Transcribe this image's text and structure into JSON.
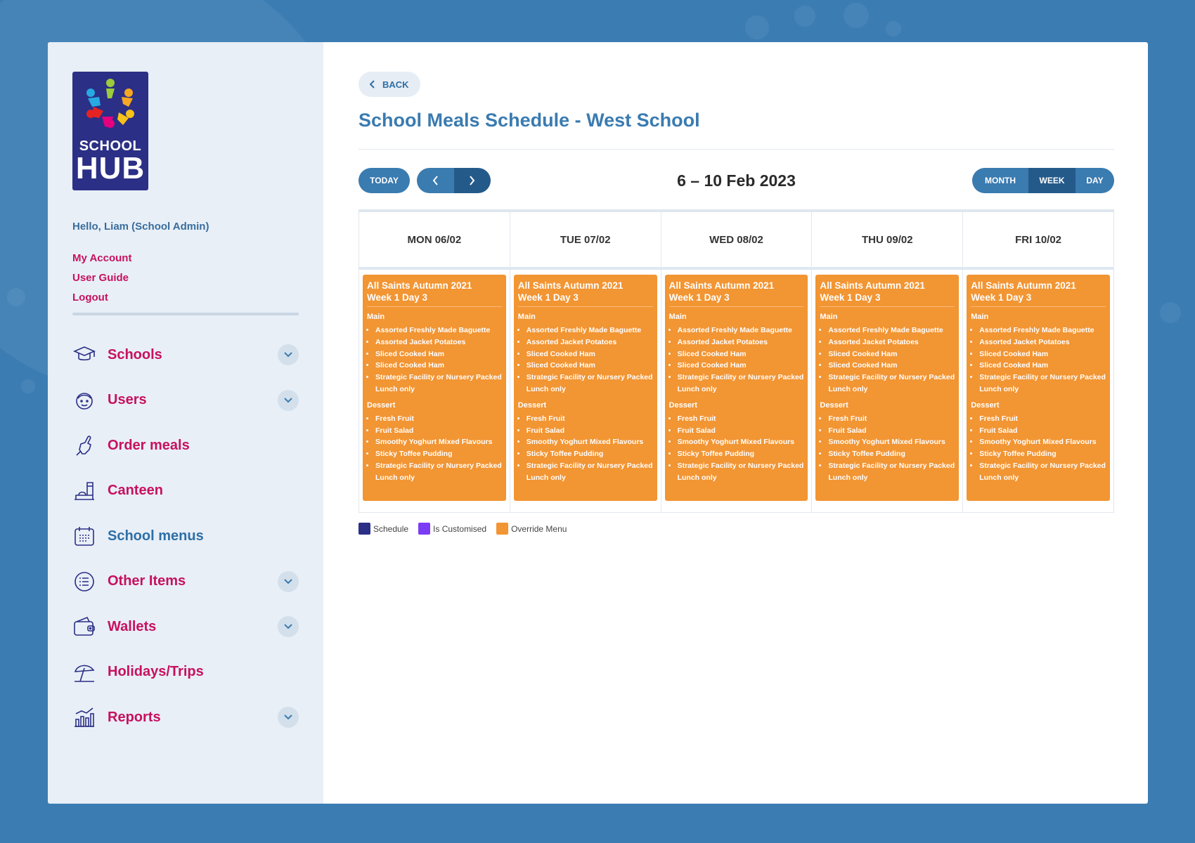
{
  "colors": {
    "page_bg": "#3b7db3",
    "accent_blue": "#3a7bb0",
    "dark_blue": "#245a8a",
    "nav_pink": "#c7115f",
    "event_orange": "#f29533"
  },
  "logo": {
    "line1": "SCHOOL",
    "line2": "HUB"
  },
  "user": {
    "greeting": "Hello, Liam (School Admin)",
    "links": [
      "My Account",
      "User Guide",
      "Logout"
    ]
  },
  "nav": [
    {
      "label": "Schools",
      "icon": "graduation-cap-icon",
      "expandable": true
    },
    {
      "label": "Users",
      "icon": "user-face-icon",
      "expandable": true
    },
    {
      "label": "Order meals",
      "icon": "hand-pointer-icon",
      "expandable": false
    },
    {
      "label": "Canteen",
      "icon": "food-tray-icon",
      "expandable": false
    },
    {
      "label": "School menus",
      "icon": "calendar-icon",
      "expandable": false,
      "active": true
    },
    {
      "label": "Other Items",
      "icon": "list-icon",
      "expandable": true
    },
    {
      "label": "Wallets",
      "icon": "wallet-icon",
      "expandable": true
    },
    {
      "label": "Holidays/Trips",
      "icon": "beach-umbrella-icon",
      "expandable": false
    },
    {
      "label": "Reports",
      "icon": "bar-chart-icon",
      "expandable": true
    }
  ],
  "main": {
    "back_label": "BACK",
    "title": "School Meals Schedule - West School"
  },
  "toolbar": {
    "today_label": "TODAY",
    "range": "6 – 10 Feb 2023",
    "views": [
      "MONTH",
      "WEEK",
      "DAY"
    ],
    "active_view": "WEEK"
  },
  "calendar": {
    "days": [
      {
        "header": "MON 06/02",
        "event": {
          "title_line1": "All Saints Autumn 2021",
          "title_line2": "Week 1 Day 3",
          "main_heading": "Main",
          "main_items": [
            "Assorted Freshly Made Baguette",
            "Assorted Jacket Potatoes",
            "Sliced Cooked Ham",
            "Sliced Cooked Ham",
            "Strategic Facility or Nursery Packed Lunch only"
          ],
          "dessert_heading": "Dessert",
          "dessert_items": [
            "Fresh Fruit",
            "Fruit Salad",
            "Smoothy Yoghurt Mixed Flavours",
            "Sticky Toffee Pudding",
            "Strategic Facility or Nursery Packed Lunch only"
          ]
        }
      },
      {
        "header": "TUE 07/02",
        "event": {
          "title_line1": "All Saints Autumn 2021",
          "title_line2": "Week 1 Day 3",
          "main_heading": "Main",
          "main_items": [
            "Assorted Freshly Made Baguette",
            "Assorted Jacket Potatoes",
            "Sliced Cooked Ham",
            "Sliced Cooked Ham",
            "Strategic Facility or Nursery Packed Lunch only"
          ],
          "dessert_heading": "Dessert",
          "dessert_items": [
            "Fresh Fruit",
            "Fruit Salad",
            "Smoothy Yoghurt Mixed Flavours",
            "Sticky Toffee Pudding",
            "Strategic Facility or Nursery Packed Lunch only"
          ]
        }
      },
      {
        "header": "WED 08/02",
        "event": {
          "title_line1": "All Saints Autumn 2021",
          "title_line2": "Week 1 Day 3",
          "main_heading": "Main",
          "main_items": [
            "Assorted Freshly Made Baguette",
            "Assorted Jacket Potatoes",
            "Sliced Cooked Ham",
            "Sliced Cooked Ham",
            "Strategic Facility or Nursery Packed Lunch only"
          ],
          "dessert_heading": "Dessert",
          "dessert_items": [
            "Fresh Fruit",
            "Fruit Salad",
            "Smoothy Yoghurt Mixed Flavours",
            "Sticky Toffee Pudding",
            "Strategic Facility or Nursery Packed Lunch only"
          ]
        }
      },
      {
        "header": "THU 09/02",
        "event": {
          "title_line1": "All Saints Autumn 2021",
          "title_line2": "Week 1 Day 3",
          "main_heading": "Main",
          "main_items": [
            "Assorted Freshly Made Baguette",
            "Assorted Jacket Potatoes",
            "Sliced Cooked Ham",
            "Sliced Cooked Ham",
            "Strategic Facility or Nursery Packed Lunch only"
          ],
          "dessert_heading": "Dessert",
          "dessert_items": [
            "Fresh Fruit",
            "Fruit Salad",
            "Smoothy Yoghurt Mixed Flavours",
            "Sticky Toffee Pudding",
            "Strategic Facility or Nursery Packed Lunch only"
          ]
        }
      },
      {
        "header": "FRI 10/02",
        "event": {
          "title_line1": "All Saints Autumn 2021",
          "title_line2": "Week 1 Day 3",
          "main_heading": "Main",
          "main_items": [
            "Assorted Freshly Made Baguette",
            "Assorted Jacket Potatoes",
            "Sliced Cooked Ham",
            "Sliced Cooked Ham",
            "Strategic Facility or Nursery Packed Lunch only"
          ],
          "dessert_heading": "Dessert",
          "dessert_items": [
            "Fresh Fruit",
            "Fruit Salad",
            "Smoothy Yoghurt Mixed Flavours",
            "Sticky Toffee Pudding",
            "Strategic Facility or Nursery Packed Lunch only"
          ]
        }
      }
    ]
  },
  "legend": [
    {
      "label": "Schedule",
      "color": "#2b2f86"
    },
    {
      "label": "Is Customised",
      "color": "#7b3cf5"
    },
    {
      "label": "Override Menu",
      "color": "#f29533"
    }
  ]
}
